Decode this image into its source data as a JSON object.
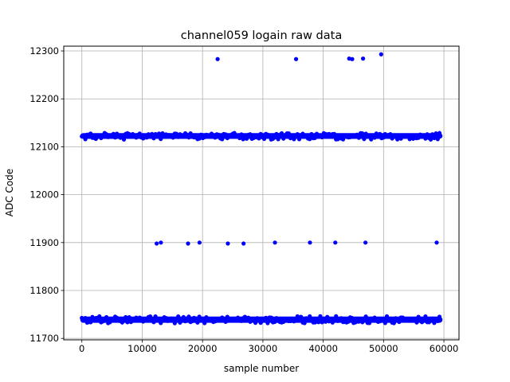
{
  "chart_data": {
    "type": "scatter",
    "title": "channel059 logain raw data",
    "xlabel": "sample number",
    "ylabel": "ADC Code",
    "xlim": [
      -3000,
      62500
    ],
    "ylim": [
      11697,
      12310
    ],
    "xticks": [
      0,
      10000,
      20000,
      30000,
      40000,
      50000,
      60000
    ],
    "xtick_labels": [
      "0",
      "10000",
      "20000",
      "30000",
      "40000",
      "50000",
      "60000"
    ],
    "yticks": [
      11700,
      11800,
      11900,
      12000,
      12100,
      12200,
      12300
    ],
    "ytick_labels": [
      "11700",
      "11800",
      "11900",
      "12000",
      "12100",
      "12200",
      "12300"
    ],
    "grid": true,
    "marker_color": "#0000ff",
    "bands": [
      {
        "x_start": 0,
        "x_end": 59500,
        "y_min": 12114,
        "y_max": 12131,
        "y_center": 12122
      },
      {
        "x_start": 0,
        "x_end": 59500,
        "y_min": 11730,
        "y_max": 11748,
        "y_center": 11739
      }
    ],
    "outliers": [
      {
        "x": 22500,
        "y": 12283
      },
      {
        "x": 35500,
        "y": 12283
      },
      {
        "x": 44300,
        "y": 12284
      },
      {
        "x": 44800,
        "y": 12283
      },
      {
        "x": 46600,
        "y": 12284
      },
      {
        "x": 49600,
        "y": 12293
      },
      {
        "x": 12400,
        "y": 11898
      },
      {
        "x": 13100,
        "y": 11900
      },
      {
        "x": 17600,
        "y": 11898
      },
      {
        "x": 19500,
        "y": 11900
      },
      {
        "x": 24200,
        "y": 11898
      },
      {
        "x": 26800,
        "y": 11898
      },
      {
        "x": 32000,
        "y": 11900
      },
      {
        "x": 37800,
        "y": 11900
      },
      {
        "x": 42000,
        "y": 11900
      },
      {
        "x": 47000,
        "y": 11900
      },
      {
        "x": 58800,
        "y": 11900
      }
    ]
  }
}
